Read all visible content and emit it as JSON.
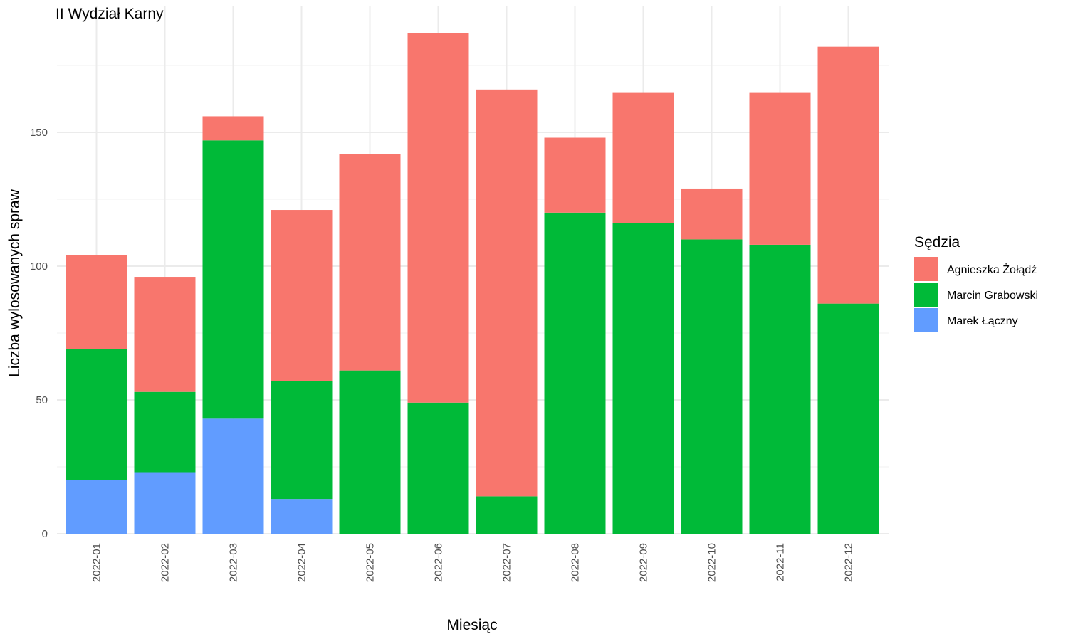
{
  "chart_data": {
    "type": "bar",
    "stacked": true,
    "title": "II Wydział Karny",
    "xlabel": "Miesiąc",
    "ylabel": "Liczba wylosowanych spraw",
    "ylim": [
      0,
      195
    ],
    "yticks": [
      0,
      50,
      100,
      150
    ],
    "grid": true,
    "legend_title": "Sędzia",
    "legend_position": "right",
    "categories": [
      "2022-01",
      "2022-02",
      "2022-03",
      "2022-04",
      "2022-05",
      "2022-06",
      "2022-07",
      "2022-08",
      "2022-09",
      "2022-10",
      "2022-11",
      "2022-12"
    ],
    "series": [
      {
        "name": "Marek Łączny",
        "color": "#619CFF",
        "values": [
          20,
          23,
          43,
          13,
          0,
          0,
          0,
          0,
          0,
          0,
          0,
          0
        ]
      },
      {
        "name": "Marcin Grabowski",
        "color": "#00BA38",
        "values": [
          49,
          30,
          104,
          44,
          61,
          49,
          14,
          120,
          116,
          110,
          108,
          86
        ]
      },
      {
        "name": "Agnieszka Żołądź",
        "color": "#F8766D",
        "values": [
          35,
          43,
          9,
          64,
          81,
          138,
          152,
          28,
          49,
          19,
          57,
          96
        ]
      }
    ],
    "legend_order": [
      "Agnieszka Żołądź",
      "Marcin Grabowski",
      "Marek Łączny"
    ]
  }
}
